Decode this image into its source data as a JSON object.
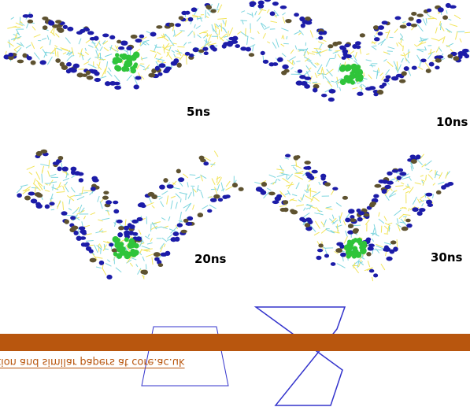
{
  "panels": [
    {
      "label": "5ns"
    },
    {
      "label": "10ns"
    },
    {
      "label": "20ns"
    },
    {
      "label": "30ns"
    }
  ],
  "banner": {
    "text": "tion and similar papers at core.ac.uk"
  }
}
